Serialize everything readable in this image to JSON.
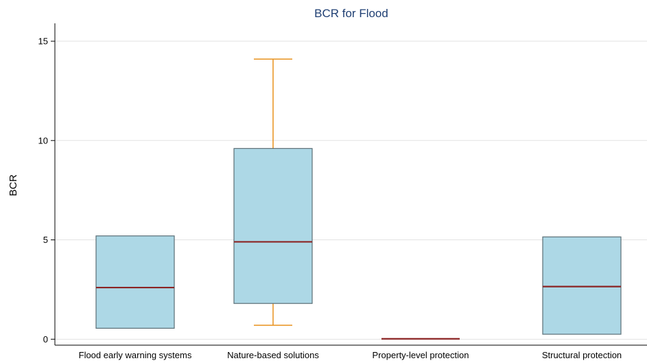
{
  "chart_data": {
    "type": "box",
    "title": "BCR for Flood",
    "xlabel": "",
    "ylabel": "BCR",
    "ylim": [
      -0.3,
      15.9
    ],
    "yticks": [
      0,
      5,
      10,
      15
    ],
    "grid": true,
    "legend": "none",
    "categories": [
      "Flood early warning systems",
      "Nature-based solutions",
      "Property-level protection",
      "Structural protection"
    ],
    "boxes": [
      {
        "category": "Flood early warning systems",
        "q1": 0.55,
        "median": 2.6,
        "q3": 5.2
      },
      {
        "category": "Nature-based solutions",
        "whisker_low": 0.7,
        "q1": 1.8,
        "median": 4.9,
        "q3": 9.6,
        "whisker_high": 14.1
      },
      {
        "category": "Property-level protection",
        "q1": 0.02,
        "median": 0.02,
        "q3": 0.02
      },
      {
        "category": "Structural protection",
        "q1": 0.25,
        "median": 2.65,
        "q3": 5.15
      }
    ],
    "colors": {
      "title": "#1f3f73",
      "box_fill": "#add8e6",
      "box_edge": "#5a6e76",
      "median": "#8b2323",
      "whisker": "#e8901c",
      "grid": "#e2e2e2",
      "axis": "#000000"
    }
  }
}
